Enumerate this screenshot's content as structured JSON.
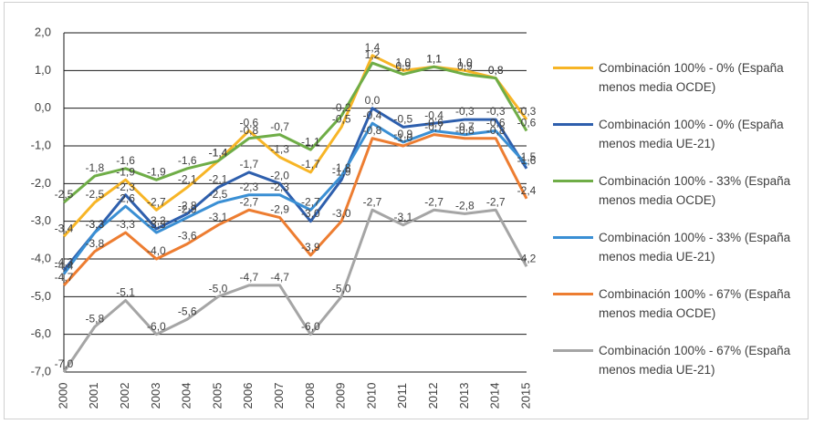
{
  "chart_data": {
    "type": "line",
    "categories": [
      "2000",
      "2001",
      "2002",
      "2003",
      "2004",
      "2005",
      "2006",
      "2007",
      "2008",
      "2009",
      "2010",
      "2011",
      "2012",
      "2013",
      "2014",
      "2015"
    ],
    "ylim": [
      -7,
      2
    ],
    "yticks": [
      {
        "value": 2,
        "label": "2,0"
      },
      {
        "value": 1,
        "label": "1,0"
      },
      {
        "value": 0,
        "label": "0,0"
      },
      {
        "value": -1,
        "label": "-1,0"
      },
      {
        "value": -2,
        "label": "-2,0"
      },
      {
        "value": -3,
        "label": "-3,0"
      },
      {
        "value": -4,
        "label": "-4,0"
      },
      {
        "value": -5,
        "label": "-5,0"
      },
      {
        "value": -6,
        "label": "-6,0"
      },
      {
        "value": -7,
        "label": "-7,0"
      }
    ],
    "grid": true,
    "legend": "right",
    "series": [
      {
        "name": "Combinación 100% - 0% (España menos media OCDE)",
        "color": "#f7b526",
        "values": [
          -3.4,
          -2.5,
          -1.9,
          -2.7,
          -2.1,
          -1.4,
          -0.6,
          -1.3,
          -1.7,
          -0.5,
          1.4,
          1.0,
          1.1,
          1.0,
          0.8,
          -0.3
        ],
        "value_labels": [
          "-3,4",
          "-2,5",
          "-1,9",
          "-2,7",
          "-2,1",
          "-1,4",
          "-0,6",
          "-1,3",
          "-1,7",
          "-0,5",
          "1,4",
          "1,0",
          "1,1",
          "1,0",
          "0,8",
          "-0,3"
        ]
      },
      {
        "name": "Combinación 100% - 0% (España menos media UE-21)",
        "color": "#2e5fad",
        "values": [
          -4.3,
          -3.3,
          -2.3,
          -3.2,
          -2.8,
          -2.1,
          -1.7,
          -2.0,
          -3.0,
          -1.9,
          0.0,
          -0.5,
          -0.4,
          -0.3,
          -0.3,
          -1.6
        ],
        "value_labels": [
          "-4,3",
          "-3,3",
          "-2,3",
          "-3,2",
          "-2,8",
          "-2,1",
          "-1,7",
          "-2,0",
          "-3,0",
          "-1,9",
          "0,0",
          "-0,5",
          "-0,4",
          "-0,3",
          "-0,3",
          "-1,6"
        ]
      },
      {
        "name": "Combinación 100% - 33% (España menos media OCDE)",
        "color": "#6fad47",
        "values": [
          -2.5,
          -1.8,
          -1.6,
          -1.9,
          -1.6,
          -1.4,
          -0.8,
          -0.7,
          -1.1,
          -0.2,
          1.2,
          0.9,
          1.1,
          0.9,
          0.8,
          -0.6
        ],
        "value_labels": [
          "-2,5",
          "-1,8",
          "-1,6",
          "-1,9",
          "-1,6",
          "-1,4",
          "-0,8",
          "-0,7",
          "-1,1",
          "-0,2",
          "1,2",
          "0,9",
          "1,1",
          "0,9",
          "0,8",
          "-0,6"
        ]
      },
      {
        "name": "Combinación 100% - 33% (España menos media UE-21)",
        "color": "#3a8fd4",
        "values": [
          -4.4,
          -3.3,
          -2.6,
          -3.3,
          -2.9,
          -2.5,
          -2.3,
          -2.3,
          -2.7,
          -1.8,
          -0.4,
          -0.9,
          -0.6,
          -0.7,
          -0.6,
          -1.5
        ],
        "value_labels": [
          "-4,4",
          "-3,3",
          "-2,6",
          "-3,3",
          "-2,9",
          "-2,5",
          "-2,3",
          "-2,3",
          "-2,7",
          "-1,8",
          "-0,4",
          "-0,9",
          "-0,6",
          "-0,7",
          "-0,6",
          "-1,5"
        ]
      },
      {
        "name": "Combinación 100% - 67% (España menos media OCDE)",
        "color": "#ed7d31",
        "values": [
          -4.7,
          -3.8,
          -3.3,
          -4.0,
          -3.6,
          -3.1,
          -2.7,
          -2.9,
          -3.9,
          -3.0,
          -0.8,
          -1.0,
          -0.7,
          -0.8,
          -0.8,
          -2.4
        ],
        "value_labels": [
          "-4,7",
          "-3,8",
          "-3,3",
          "-4,0",
          "-3,6",
          "-3,1",
          "-2,7",
          "-2,9",
          "-3,9",
          "-3,0",
          "-0,8",
          "-1,0",
          "-0,7",
          "-0,8",
          "-0,8",
          "-2,4"
        ]
      },
      {
        "name": "Combinación 100% - 67% (España menos media UE-21)",
        "color": "#a5a5a5",
        "values": [
          -7.0,
          -5.8,
          -5.1,
          -6.0,
          -5.6,
          -5.0,
          -4.7,
          -4.7,
          -6.0,
          -5.0,
          -2.7,
          -3.1,
          -2.7,
          -2.8,
          -2.7,
          -4.2
        ],
        "value_labels": [
          "-7,0",
          "-5,8",
          "-5,1",
          "-6,0",
          "-5,6",
          "-5,0",
          "-4,7",
          "-4,7",
          "-6,0",
          "-5,0",
          "-2,7",
          "-3,1",
          "-2,7",
          "-2,8",
          "-2,7",
          "-4,2"
        ]
      }
    ]
  }
}
